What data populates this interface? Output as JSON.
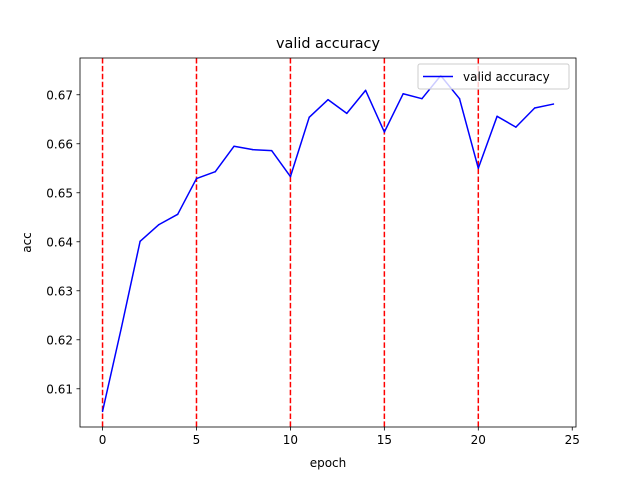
{
  "chart_data": {
    "type": "line",
    "title": "valid accuracy",
    "xlabel": "epoch",
    "ylabel": "acc",
    "xlim": [
      -1.2,
      25.2
    ],
    "ylim": [
      0.6022,
      0.6775
    ],
    "xticks": [
      0,
      5,
      10,
      15,
      20,
      25
    ],
    "yticks": [
      0.61,
      0.62,
      0.63,
      0.64,
      0.65,
      0.66,
      0.67
    ],
    "xtick_labels": [
      "0",
      "5",
      "10",
      "15",
      "20",
      "25"
    ],
    "ytick_labels": [
      "0.61",
      "0.62",
      "0.63",
      "0.64",
      "0.65",
      "0.66",
      "0.67"
    ],
    "grid": false,
    "legend_position": "upper-right",
    "series": [
      {
        "name": "valid accuracy",
        "color": "#0000ff",
        "x": [
          0,
          1,
          2,
          3,
          4,
          5,
          6,
          7,
          8,
          9,
          10,
          11,
          12,
          13,
          14,
          15,
          16,
          17,
          18,
          19,
          20,
          21,
          22,
          23,
          24
        ],
        "y": [
          0.6054,
          0.6224,
          0.6401,
          0.6435,
          0.6456,
          0.6529,
          0.6543,
          0.6595,
          0.6588,
          0.6586,
          0.6533,
          0.6654,
          0.669,
          0.6662,
          0.6709,
          0.6624,
          0.6702,
          0.6692,
          0.6739,
          0.6692,
          0.655,
          0.6656,
          0.6634,
          0.6673,
          0.6681
        ]
      }
    ],
    "vlines": {
      "x": [
        0,
        5,
        10,
        15,
        20
      ],
      "color": "#ff0000",
      "style": "dashed"
    }
  }
}
